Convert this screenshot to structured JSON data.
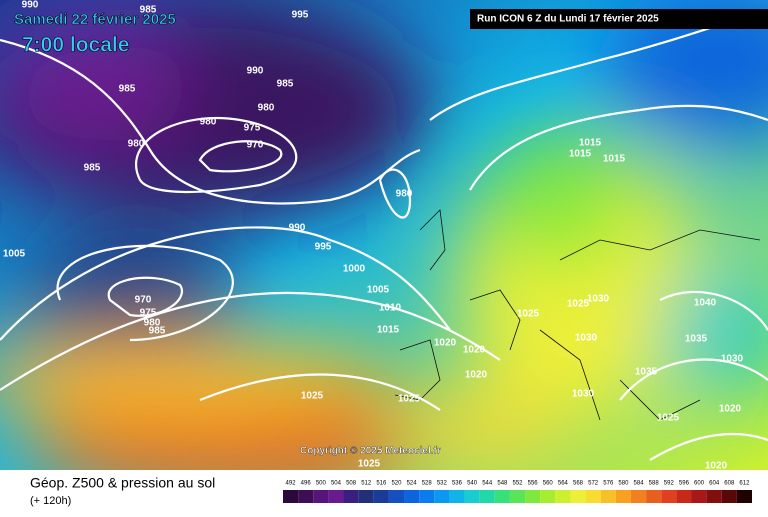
{
  "header": {
    "date": "Samedi 22 février 2025",
    "time": "7:00 locale",
    "run": "Run ICON 6 Z du Lundi 17 février 2025"
  },
  "copyright": "Copyright © 2025 Meteociel.fr",
  "footer": {
    "title": "Géop. Z500 & pression au sol",
    "lead": "(+ 120h)"
  },
  "isobar_labels": [
    990,
    985,
    995,
    990,
    985,
    985,
    980,
    975,
    970,
    980,
    980,
    985,
    980,
    990,
    995,
    1000,
    1005,
    1005,
    1010,
    1015,
    970,
    975,
    980,
    985,
    1020,
    1020,
    1020,
    1025,
    1025,
    1025,
    1030,
    1035,
    1025,
    1020,
    1020,
    1030,
    1035,
    1040,
    1015,
    1015,
    1015,
    1030,
    1025,
    1025,
    1030
  ],
  "scale": {
    "values": [
      492,
      496,
      500,
      504,
      508,
      512,
      516,
      520,
      524,
      528,
      532,
      536,
      540,
      544,
      548,
      552,
      556,
      560,
      564,
      568,
      572,
      576,
      580,
      584,
      588,
      592,
      596,
      600,
      604,
      608,
      612
    ],
    "colors": [
      "#2a0a3a",
      "#3c0f55",
      "#55157a",
      "#6a1a90",
      "#3a1f80",
      "#22307a",
      "#1a3c98",
      "#1450c0",
      "#0e64dc",
      "#0a7cf0",
      "#0a98f0",
      "#10b4e8",
      "#18ccd0",
      "#20d8a8",
      "#38e07c",
      "#5ae458",
      "#80e83c",
      "#a8ec30",
      "#ccf030",
      "#eef038",
      "#f8dc30",
      "#f8c028",
      "#f8a020",
      "#f08020",
      "#e86020",
      "#e04020",
      "#c82818",
      "#a81818",
      "#801010",
      "#580808",
      "#200000"
    ]
  }
}
